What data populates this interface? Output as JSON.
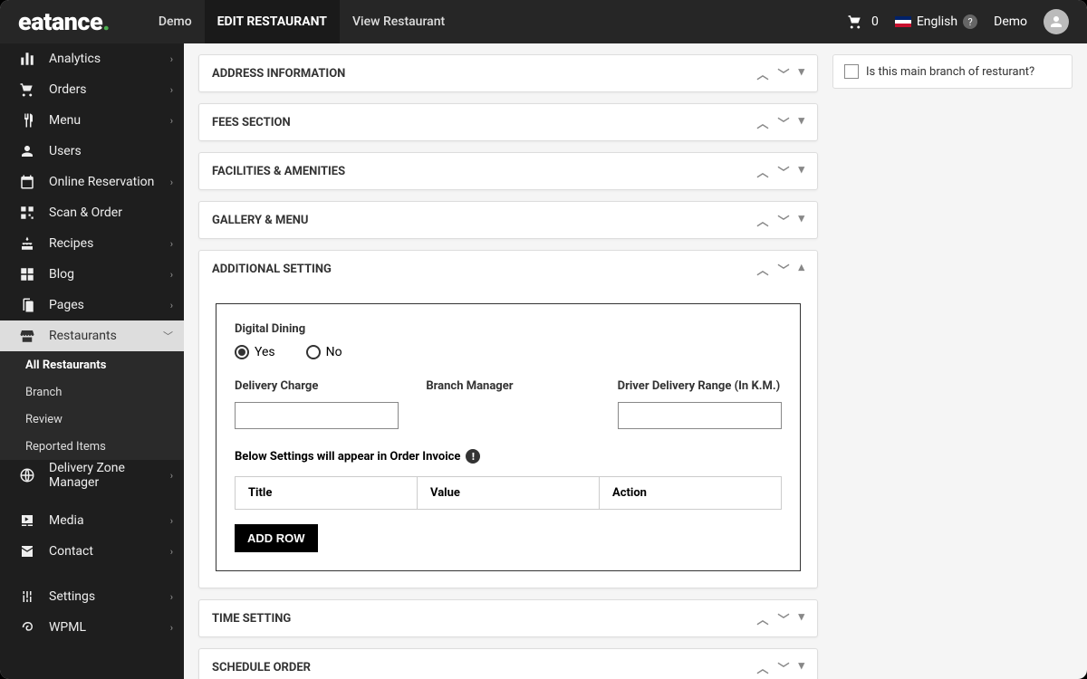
{
  "brand": {
    "name": "eatance",
    "dot_color": "#4caf50"
  },
  "topnav": {
    "items": [
      "Demo",
      "EDIT RESTAURANT",
      "View Restaurant"
    ],
    "active_index": 1,
    "cart_count": "0",
    "language": "English",
    "user_label": "Demo"
  },
  "sidebar": {
    "items": [
      {
        "label": "Analytics",
        "icon": "chart"
      },
      {
        "label": "Orders",
        "icon": "cart"
      },
      {
        "label": "Menu",
        "icon": "utensils"
      },
      {
        "label": "Users",
        "icon": "user"
      },
      {
        "label": "Online Reservation",
        "icon": "calendar"
      },
      {
        "label": "Scan & Order",
        "icon": "qr"
      },
      {
        "label": "Recipes",
        "icon": "cake"
      },
      {
        "label": "Blog",
        "icon": "grid"
      },
      {
        "label": "Pages",
        "icon": "pages"
      },
      {
        "label": "Restaurants",
        "icon": "store",
        "active": true,
        "sub": [
          "All Restaurants",
          "Branch",
          "Review",
          "Reported Items"
        ],
        "sub_active": 0
      },
      {
        "label": "Delivery Zone Manager",
        "icon": "globe"
      },
      {
        "label": "Media",
        "icon": "media"
      },
      {
        "label": "Contact",
        "icon": "mail"
      },
      {
        "label": "Settings",
        "icon": "settings"
      },
      {
        "label": "WPML",
        "icon": "wpml"
      }
    ]
  },
  "panels": {
    "address": "ADDRESS INFORMATION",
    "fees": "FEES SECTION",
    "facilities": "FACILITIES & AMENITIES",
    "gallery": "GALLERY & MENU",
    "additional": "ADDITIONAL SETTING",
    "time": "TIME SETTING",
    "schedule": "SCHEDULE ORDER"
  },
  "additional": {
    "digital_dining_label": "Digital Dining",
    "radio_yes": "Yes",
    "radio_no": "No",
    "radio_selected": "yes",
    "delivery_charge_label": "Delivery Charge",
    "branch_manager_label": "Branch Manager",
    "driver_range_label": "Driver Delivery Range (In K.M.)",
    "invoice_note": "Below Settings will appear in Order Invoice",
    "table_headers": [
      "Title",
      "Value",
      "Action"
    ],
    "add_row_label": "ADD ROW"
  },
  "side_panel": {
    "main_branch_label": "Is this main branch of resturant?"
  }
}
